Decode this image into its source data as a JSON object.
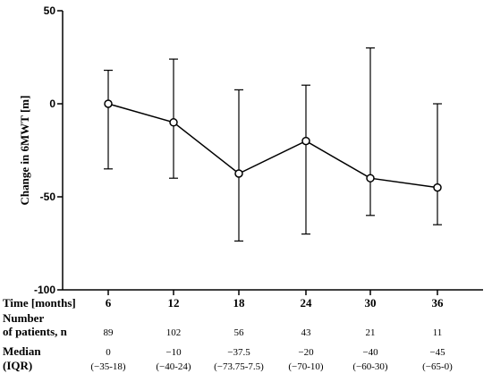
{
  "chart_data": {
    "type": "line",
    "ylabel": "Change in 6MWT [m]",
    "ylim": [
      -100,
      50
    ],
    "yticks": [
      50,
      0,
      -50,
      -100
    ],
    "x_row_label": "Time [months]",
    "categories": [
      "6",
      "12",
      "18",
      "24",
      "30",
      "36"
    ],
    "values": [
      0,
      -10,
      -37.5,
      -20,
      -40,
      -45
    ],
    "error_low": [
      -35,
      -40,
      -73.75,
      -70,
      -60,
      -65
    ],
    "error_high": [
      18,
      24,
      7.5,
      10,
      30,
      0
    ],
    "grid": false,
    "marker": "open-circle"
  },
  "table": {
    "patients_label_line1": "Number",
    "patients_label_line2": "of patients, n",
    "patients": [
      "89",
      "102",
      "56",
      "43",
      "21",
      "11"
    ],
    "median_label_line1": "Median",
    "median_label_line2": "(IQR)",
    "medians": [
      "0",
      "−10",
      "−37.5",
      "−20",
      "−40",
      "−45"
    ],
    "iqr": [
      "(−35-18)",
      "(−40-24)",
      "(−73.75-7.5)",
      "(−70-10)",
      "(−60-30)",
      "(−65-0)"
    ]
  }
}
